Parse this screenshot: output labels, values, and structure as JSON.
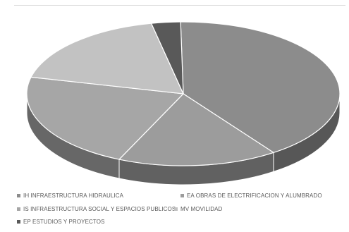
{
  "chart_data": {
    "type": "pie",
    "variant": "3d",
    "title": "",
    "legend_position": "bottom",
    "slices": [
      {
        "label": "IH INFRAESTRUCTURA HIDRAULICA",
        "value": 40.5,
        "color": "#8c8c8c"
      },
      {
        "label": "EA OBRAS DE ELECTRIFICACION Y ALUMBRADO",
        "value": 16.5,
        "color": "#9c9c9c"
      },
      {
        "label": "IS INFRAESTRUCTURA SOCIAL Y ESPACIOS PUBLICOS",
        "value": 22.0,
        "color": "#a6a6a6"
      },
      {
        "label": "MV MOVILIDAD",
        "value": 18.0,
        "color": "#c2c2c2"
      },
      {
        "label": "EP ESTUDIOS Y PROYECTOS",
        "value": 3.0,
        "color": "#595959"
      }
    ]
  },
  "legend": {
    "items": [
      "IH INFRAESTRUCTURA HIDRAULICA",
      "EA OBRAS DE ELECTRIFICACION Y ALUMBRADO",
      "IS INFRAESTRUCTURA SOCIAL Y ESPACIOS PUBLICOS",
      "MV MOVILIDAD",
      "EP ESTUDIOS Y PROYECTOS"
    ]
  }
}
